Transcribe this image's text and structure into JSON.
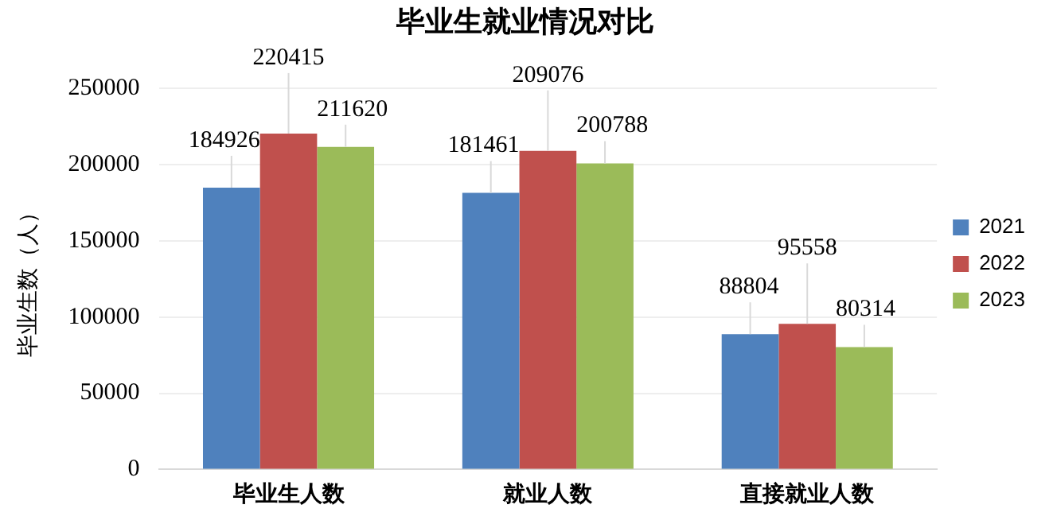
{
  "chart_data": {
    "type": "bar",
    "title": "毕业生就业情况对比",
    "ylabel": "毕业生数（人）",
    "categories": [
      "毕业生人数",
      "就业人数",
      "直接就业人数"
    ],
    "series": [
      {
        "name": "2021",
        "color": "#4f81bd",
        "values": [
          184926,
          181461,
          88804
        ]
      },
      {
        "name": "2022",
        "color": "#c0504d",
        "values": [
          220415,
          209076,
          95558
        ]
      },
      {
        "name": "2023",
        "color": "#9bbb59",
        "values": [
          211620,
          200788,
          80314
        ]
      }
    ],
    "ylim": [
      0,
      250000
    ],
    "yticks": [
      0,
      50000,
      100000,
      150000,
      200000,
      250000
    ],
    "grid": "y",
    "legend": "right",
    "data_labels": true
  }
}
